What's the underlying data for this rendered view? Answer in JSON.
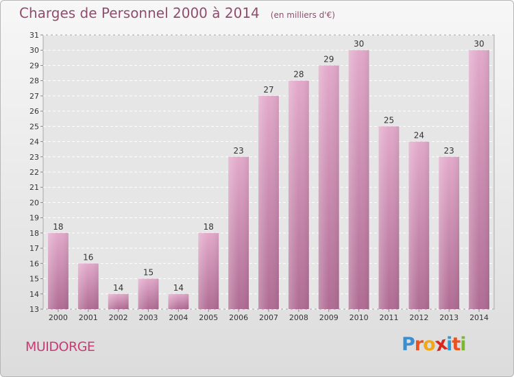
{
  "title": "Charges de Personnel 2000 à 2014",
  "subtitle": "(en milliers d'€)",
  "commune": "MUIDORGE",
  "logo": {
    "text": "Proxiti",
    "colors": [
      "#3a8fd1",
      "#e8531f",
      "#f0a818",
      "#d6281f",
      "#2e9ad6",
      "#e8531f",
      "#7cb82f"
    ]
  },
  "colors": {
    "bar": "#d89cc0",
    "bar_dark": "#b06c94",
    "title": "#8e4d6d",
    "commune": "#c73b74"
  },
  "chart_data": {
    "type": "bar",
    "categories": [
      "2000",
      "2001",
      "2002",
      "2003",
      "2004",
      "2005",
      "2006",
      "2007",
      "2008",
      "2009",
      "2010",
      "2011",
      "2012",
      "2013",
      "2014"
    ],
    "values": [
      18,
      16,
      14,
      15,
      14,
      18,
      23,
      27,
      28,
      29,
      30,
      25,
      24,
      23,
      30
    ],
    "ylim": [
      13,
      31
    ],
    "yticks": [
      13,
      14,
      15,
      16,
      17,
      18,
      19,
      20,
      21,
      22,
      23,
      24,
      25,
      26,
      27,
      28,
      29,
      30,
      31
    ],
    "grid": true,
    "legend": "none"
  }
}
